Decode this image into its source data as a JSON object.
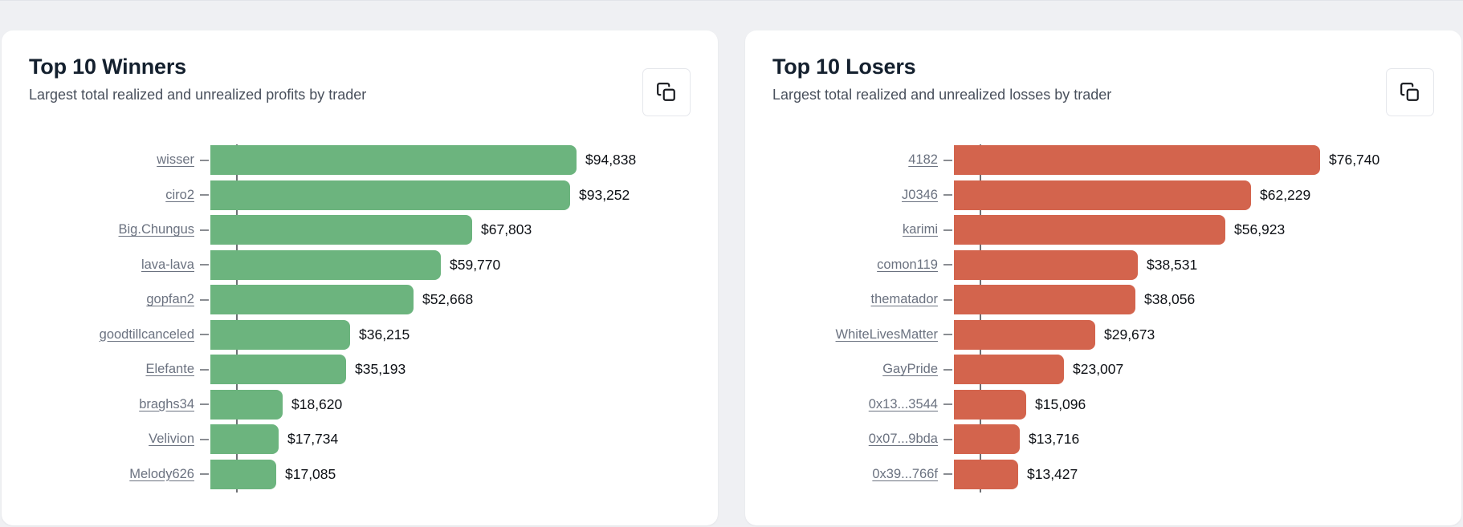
{
  "page": {
    "background_color": "#eff0f3",
    "card_color": "#ffffff"
  },
  "cards": [
    {
      "title": "Top 10 Winners",
      "subtitle": "Largest total realized and unrealized profits by trader",
      "action_icon": "copy-icon"
    },
    {
      "title": "Top 10 Losers",
      "subtitle": "Largest total realized and unrealized losses by trader",
      "action_icon": "copy-icon"
    }
  ],
  "chart_data": [
    {
      "type": "bar",
      "orientation": "horizontal",
      "title": "Top 10 Winners",
      "categories": [
        "wisser",
        "ciro2",
        "Big.Chungus",
        "lava-lava",
        "gopfan2",
        "goodtillcanceled",
        "Elefante",
        "braghs34",
        "Velivion",
        "Melody626"
      ],
      "values": [
        94838,
        93252,
        67803,
        59770,
        52668,
        36215,
        35193,
        18620,
        17734,
        17085
      ],
      "value_labels": [
        "$94,838",
        "$93,252",
        "$67,803",
        "$59,770",
        "$52,668",
        "$36,215",
        "$35,193",
        "$18,620",
        "$17,734",
        "$17,085"
      ],
      "bar_color": "#6cb47e",
      "label_color": "#6b7280",
      "axis_color": "#6e7074",
      "xlim": [
        0,
        94838
      ],
      "grid": false,
      "legend": false
    },
    {
      "type": "bar",
      "orientation": "horizontal",
      "title": "Top 10 Losers",
      "categories": [
        "4182",
        "J0346",
        "karimi",
        "comon119",
        "thematador",
        "WhiteLivesMatter",
        "GayPride",
        "0x13...3544",
        "0x07...9bda",
        "0x39...766f"
      ],
      "values": [
        76740,
        62229,
        56923,
        38531,
        38056,
        29673,
        23007,
        15096,
        13716,
        13427
      ],
      "value_labels": [
        "$76,740",
        "$62,229",
        "$56,923",
        "$38,531",
        "$38,056",
        "$29,673",
        "$23,007",
        "$15,096",
        "$13,716",
        "$13,427"
      ],
      "bar_color": "#d3644d",
      "label_color": "#6b7280",
      "axis_color": "#6e7074",
      "xlim": [
        0,
        76740
      ],
      "grid": false,
      "legend": false
    }
  ]
}
